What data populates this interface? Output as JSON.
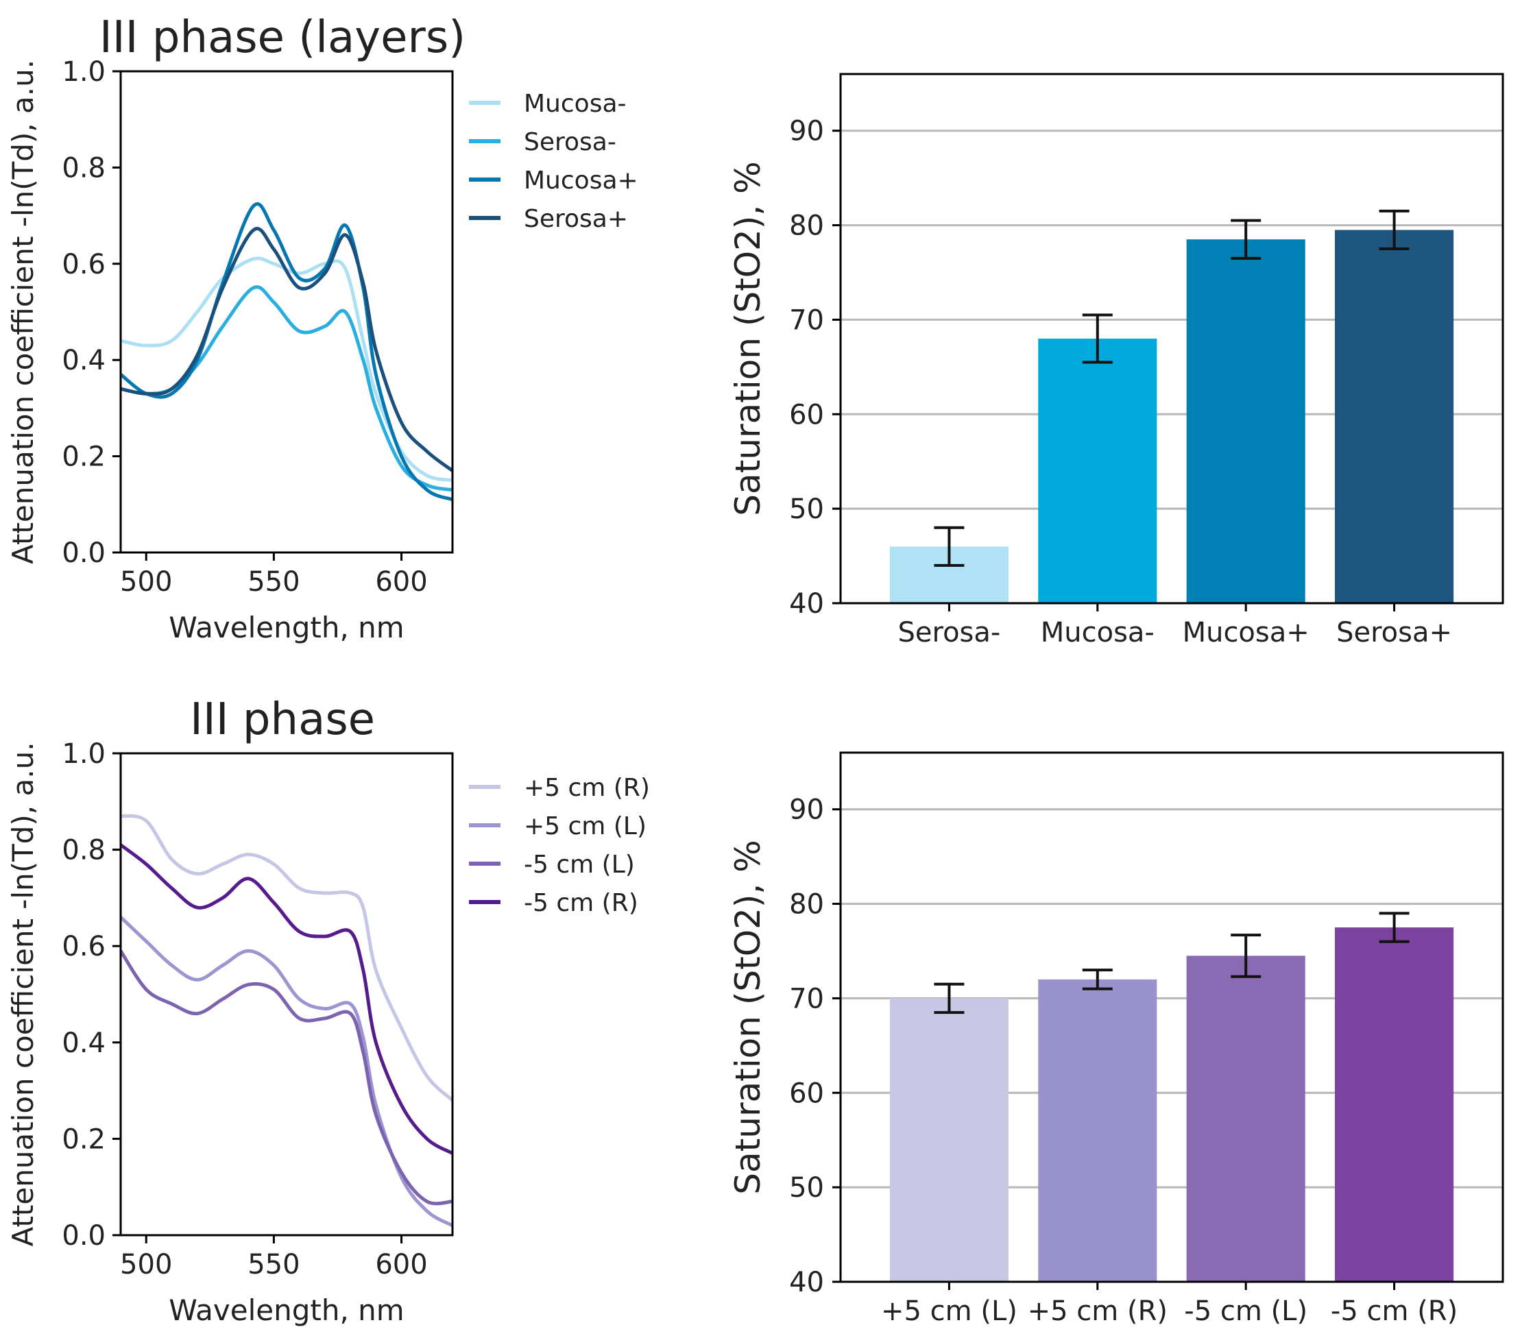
{
  "chart_data": [
    {
      "id": "spectra-layers",
      "type": "line",
      "title": "III phase (layers)",
      "xlabel": "Wavelength, nm",
      "ylabel": "Attenuation coefficient -ln(Td), a.u.",
      "xlim": [
        490,
        620
      ],
      "ylim": [
        0.0,
        1.0
      ],
      "xticks": [
        500,
        550,
        600
      ],
      "xtick_labels": [
        "500",
        "550",
        "600"
      ],
      "yticks": [
        0.0,
        0.2,
        0.4,
        0.6,
        0.8,
        1.0
      ],
      "ytick_labels": [
        "0.0",
        "0.2",
        "0.4",
        "0.6",
        "0.8",
        "1.0"
      ],
      "legend_position": "outside-right",
      "x": [
        490,
        500,
        510,
        520,
        530,
        542,
        550,
        560,
        570,
        578,
        585,
        590,
        600,
        610,
        620
      ],
      "series": [
        {
          "name": "Mucosa-",
          "color": "#acdff4",
          "values": [
            0.44,
            0.43,
            0.44,
            0.5,
            0.57,
            0.61,
            0.6,
            0.58,
            0.6,
            0.59,
            0.44,
            0.33,
            0.21,
            0.16,
            0.15
          ]
        },
        {
          "name": "Serosa-",
          "color": "#2aaee0",
          "values": [
            0.34,
            0.33,
            0.34,
            0.39,
            0.47,
            0.55,
            0.52,
            0.46,
            0.47,
            0.5,
            0.4,
            0.3,
            0.18,
            0.14,
            0.13
          ]
        },
        {
          "name": "Mucosa+",
          "color": "#0577b0",
          "values": [
            0.37,
            0.33,
            0.33,
            0.4,
            0.56,
            0.72,
            0.67,
            0.57,
            0.59,
            0.68,
            0.55,
            0.37,
            0.2,
            0.13,
            0.11
          ]
        },
        {
          "name": "Serosa+",
          "color": "#1b4f7c",
          "values": [
            0.34,
            0.33,
            0.34,
            0.41,
            0.55,
            0.67,
            0.63,
            0.55,
            0.58,
            0.66,
            0.56,
            0.42,
            0.27,
            0.21,
            0.17
          ]
        }
      ]
    },
    {
      "id": "bars-layers",
      "type": "bar",
      "ylabel": "Saturation (StO2), %",
      "ylim": [
        40,
        96
      ],
      "yticks": [
        40,
        50,
        60,
        70,
        80,
        90
      ],
      "ytick_labels": [
        "40",
        "50",
        "60",
        "70",
        "80",
        "90"
      ],
      "gridlines": "horizontal",
      "categories": [
        "Serosa-",
        "Mucosa-",
        "Mucosa+",
        "Serosa+"
      ],
      "values": [
        46.0,
        68.0,
        78.5,
        79.5
      ],
      "errors": [
        2.0,
        2.5,
        2.0,
        2.0
      ],
      "colors": [
        "#b0e2f5",
        "#00aadc",
        "#0080b4",
        "#1e5680"
      ]
    },
    {
      "id": "spectra-phase",
      "type": "line",
      "title": "III phase",
      "xlabel": "Wavelength, nm",
      "ylabel": "Attenuation coefficient -ln(Td), a.u.",
      "xlim": [
        490,
        620
      ],
      "ylim": [
        0.0,
        1.0
      ],
      "xticks": [
        500,
        550,
        600
      ],
      "xtick_labels": [
        "500",
        "550",
        "600"
      ],
      "yticks": [
        0.0,
        0.2,
        0.4,
        0.6,
        0.8,
        1.0
      ],
      "ytick_labels": [
        "0.0",
        "0.2",
        "0.4",
        "0.6",
        "0.8",
        "1.0"
      ],
      "legend_position": "outside-right",
      "x": [
        490,
        500,
        510,
        520,
        530,
        540,
        550,
        560,
        570,
        580,
        585,
        590,
        600,
        610,
        620
      ],
      "series": [
        {
          "name": "+5 cm (R)",
          "color": "#c5c6e5",
          "values": [
            0.87,
            0.86,
            0.78,
            0.75,
            0.77,
            0.79,
            0.77,
            0.72,
            0.71,
            0.71,
            0.68,
            0.55,
            0.43,
            0.33,
            0.28
          ]
        },
        {
          "name": "+5 cm (L)",
          "color": "#9b96cf",
          "values": [
            0.66,
            0.61,
            0.56,
            0.53,
            0.56,
            0.59,
            0.56,
            0.49,
            0.47,
            0.48,
            0.41,
            0.27,
            0.12,
            0.05,
            0.02
          ]
        },
        {
          "name": "-5 cm (L)",
          "color": "#7d62b0",
          "values": [
            0.59,
            0.51,
            0.48,
            0.46,
            0.49,
            0.52,
            0.51,
            0.45,
            0.45,
            0.46,
            0.38,
            0.25,
            0.13,
            0.07,
            0.07
          ]
        },
        {
          "name": "-5 cm (R)",
          "color": "#561b8c",
          "values": [
            0.81,
            0.77,
            0.72,
            0.68,
            0.7,
            0.74,
            0.69,
            0.63,
            0.62,
            0.63,
            0.55,
            0.4,
            0.27,
            0.2,
            0.17
          ]
        }
      ]
    },
    {
      "id": "bars-phase",
      "type": "bar",
      "ylabel": "Saturation (StO2), %",
      "ylim": [
        40,
        96
      ],
      "yticks": [
        40,
        50,
        60,
        70,
        80,
        90
      ],
      "ytick_labels": [
        "40",
        "50",
        "60",
        "70",
        "80",
        "90"
      ],
      "gridlines": "horizontal",
      "categories": [
        "+5 cm (L)",
        "+5 cm (R)",
        "-5 cm (L)",
        "-5 cm (R)"
      ],
      "values": [
        70.0,
        72.0,
        74.5,
        77.5
      ],
      "errors": [
        1.5,
        1.0,
        2.2,
        1.5
      ],
      "colors": [
        "#c8c8e6",
        "#9a92cc",
        "#8a6ab3",
        "#7b42a0"
      ]
    }
  ]
}
